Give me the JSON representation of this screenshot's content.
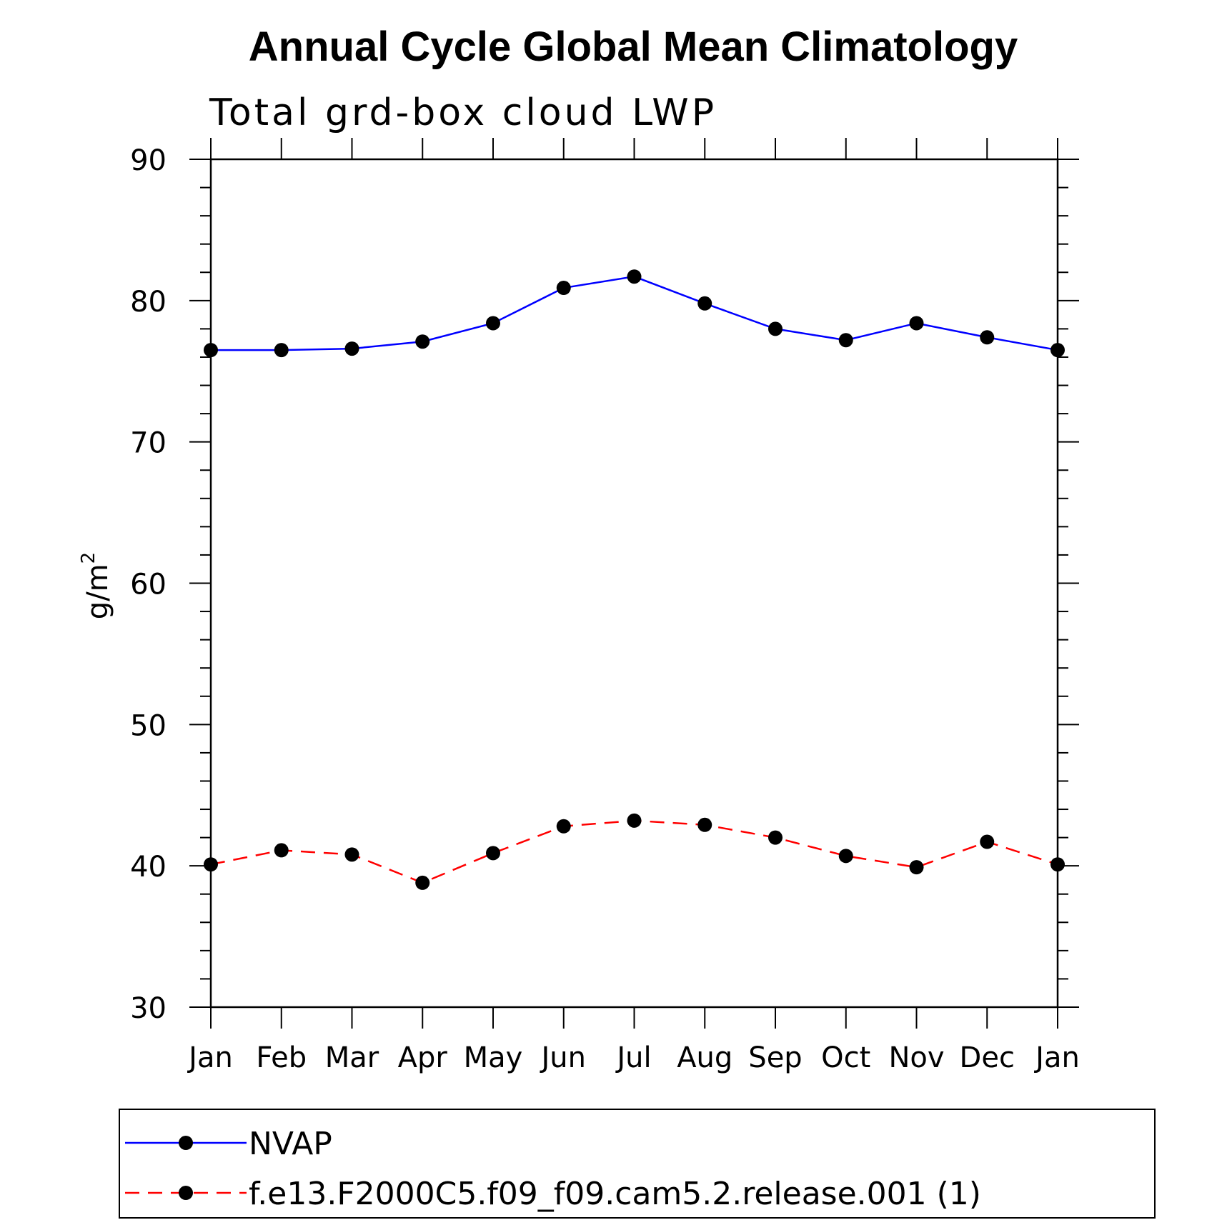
{
  "chart_data": {
    "type": "line",
    "title": "Annual Cycle Global Mean Climatology",
    "subtitle": "Total grd-box cloud LWP",
    "ylabel": "g/m",
    "ylabel_superscript": "2",
    "xlabel": "",
    "ylim": [
      30,
      90
    ],
    "yticks": [
      30,
      40,
      50,
      60,
      70,
      80,
      90
    ],
    "yminor_step": 2,
    "categories": [
      "Jan",
      "Feb",
      "Mar",
      "Apr",
      "May",
      "Jun",
      "Jul",
      "Aug",
      "Sep",
      "Oct",
      "Nov",
      "Dec",
      "Jan"
    ],
    "grid": false,
    "legend_position": "bottom",
    "series": [
      {
        "name": "NVAP",
        "color": "#0000ff",
        "dash": "solid",
        "marker_color": "#000000",
        "values": [
          76.5,
          76.5,
          76.6,
          77.1,
          78.4,
          80.9,
          81.7,
          79.8,
          78.0,
          77.2,
          78.4,
          77.4,
          76.5
        ]
      },
      {
        "name": "f.e13.F2000C5.f09_f09.cam5.2.release.001 (1)",
        "color": "#ff0000",
        "dash": "dashed",
        "marker_color": "#000000",
        "values": [
          40.1,
          41.1,
          40.8,
          38.8,
          40.9,
          42.8,
          43.2,
          42.9,
          42.0,
          40.7,
          39.9,
          41.7,
          40.1
        ]
      }
    ]
  }
}
